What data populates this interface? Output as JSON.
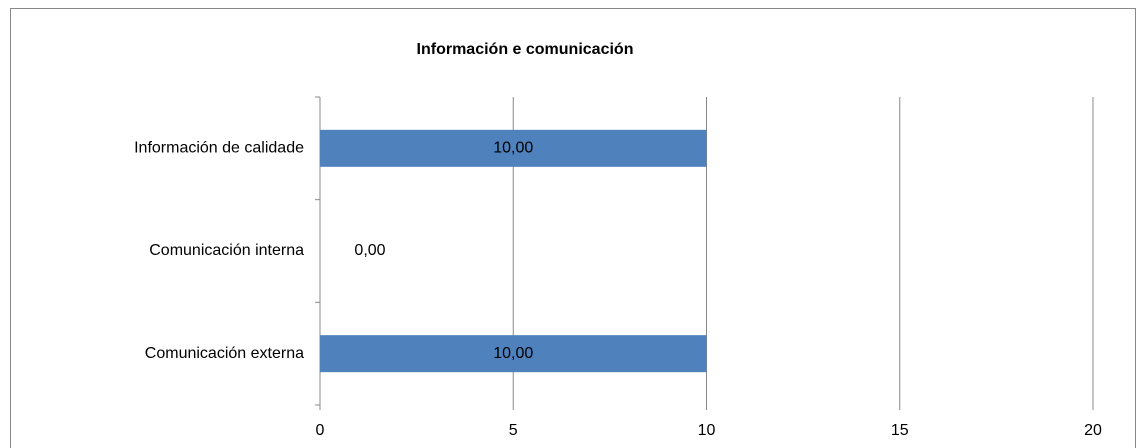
{
  "chart_data": {
    "type": "bar",
    "orientation": "horizontal",
    "title": "Información e comunicación",
    "categories": [
      "Información de calidade",
      "Comunicación interna",
      "Comunicación externa"
    ],
    "values": [
      10,
      0,
      10
    ],
    "value_labels": [
      "10,00",
      "0,00",
      "10,00"
    ],
    "color": "#4f81bd",
    "xlim": [
      0,
      20
    ],
    "xticks": [
      0,
      5,
      10,
      15,
      20
    ],
    "grid": true
  }
}
